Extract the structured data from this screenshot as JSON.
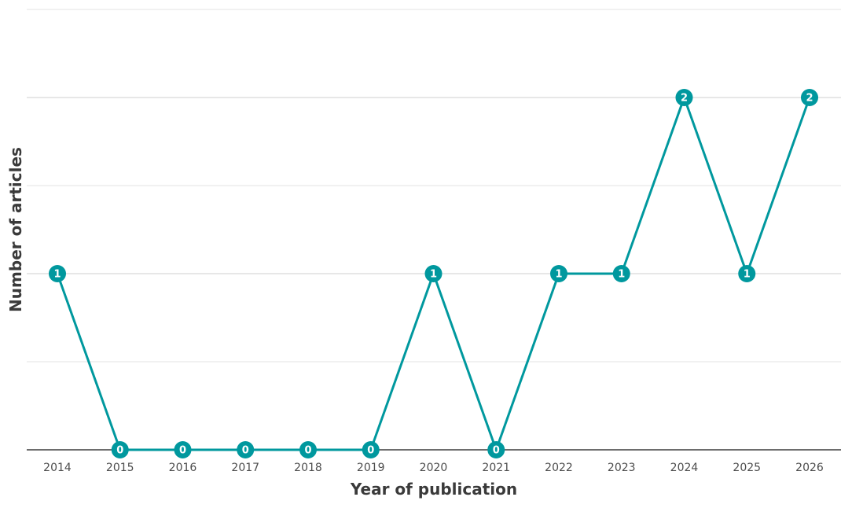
{
  "chart_data": {
    "type": "line",
    "xlabel": "Year of publication",
    "ylabel": "Number of articles",
    "x": [
      "2014",
      "2015",
      "2016",
      "2017",
      "2018",
      "2019",
      "2020",
      "2021",
      "2022",
      "2023",
      "2024",
      "2025",
      "2026"
    ],
    "series": [
      {
        "values": [
          1,
          0,
          0,
          0,
          0,
          0,
          1,
          0,
          1,
          1,
          2,
          1,
          2
        ]
      }
    ],
    "ylim": [
      0,
      2.5
    ],
    "grid": true,
    "colors": {
      "series": "#00989e",
      "grid": "#e3e3e3",
      "axis": "#3d3d3d",
      "text": "#4d4d4d"
    }
  }
}
